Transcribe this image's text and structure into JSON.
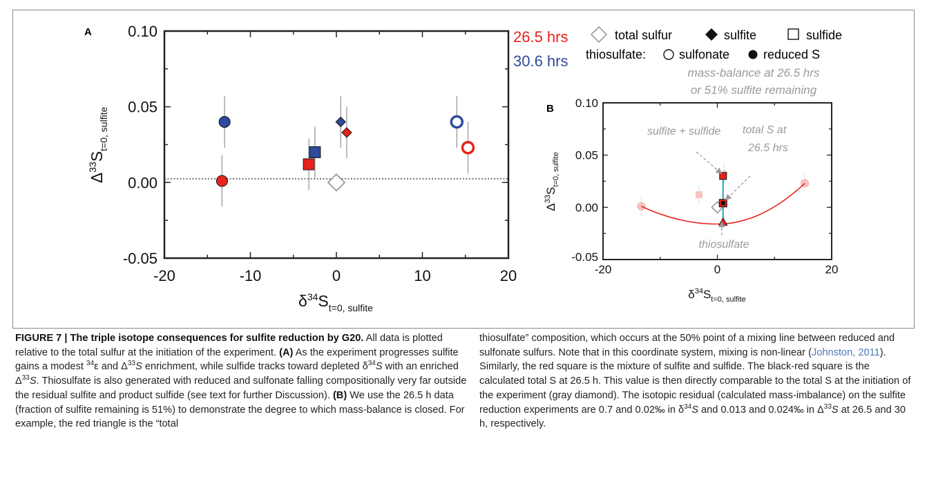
{
  "panel_a": {
    "label": "A",
    "ylabel_main": "Δ",
    "ylabel_sup": "33",
    "ylabel_rest": "S",
    "ylabel_sub": "t=0, sulfite",
    "xlabel_main": "δ",
    "xlabel_sup": "34",
    "xlabel_rest": "S",
    "xlabel_sub": "t=0, sulfite",
    "x_ticks": [
      "-20",
      "-10",
      "0",
      "10",
      "20"
    ],
    "y_ticks": [
      "0.10",
      "0.05",
      "0.00",
      "-0.05"
    ]
  },
  "legend": {
    "time1": "26.5 hrs",
    "time2": "30.6 hrs",
    "total_sulfur": "total sulfur",
    "sulfite": "sulfite",
    "sulfide": "sulfide",
    "thiosulfate_prefix": "thiosulfate:",
    "sulfonate": "sulfonate",
    "reduced": "reduced S",
    "mass_balance_line1": "mass-balance at 26.5 hrs",
    "mass_balance_line2": "or 51% sulfite remaining",
    "colors": {
      "h26": "#e8231c",
      "h30": "#2e4a9c",
      "gray": "#999999",
      "line": "#1ea3c4"
    }
  },
  "panel_b": {
    "label": "B",
    "x_ticks": [
      "-20",
      "0",
      "20"
    ],
    "y_ticks": [
      "0.10",
      "0.05",
      "0.00",
      "-0.05"
    ],
    "annotation_sulfite_sulfide": "sulfite + sulfide",
    "annotation_total_line1": "total S at",
    "annotation_total_line2": "26.5 hrs",
    "annotation_thiosulfate": "thiosulfate"
  },
  "chart_data": [
    {
      "type": "scatter",
      "panel": "A",
      "xlim": [
        -20,
        20
      ],
      "ylim": [
        -0.05,
        0.1
      ],
      "reference_line_y": 0.0,
      "series": [
        {
          "name": "total sulfur",
          "marker": "open-diamond",
          "color": "#999999",
          "points": [
            {
              "x": 0.0,
              "y": 0.0,
              "err": 0.0
            }
          ]
        },
        {
          "name": "sulfite",
          "marker": "filled-diamond",
          "points": [
            {
              "x": 1.2,
              "y": 0.033,
              "err": 0.017,
              "color": "#e8231c"
            },
            {
              "x": 0.5,
              "y": 0.04,
              "err": 0.017,
              "color": "#2e4a9c"
            }
          ]
        },
        {
          "name": "sulfide",
          "marker": "filled-square",
          "points": [
            {
              "x": -3.2,
              "y": 0.012,
              "err": 0.017,
              "color": "#e8231c"
            },
            {
              "x": -2.5,
              "y": 0.02,
              "err": 0.017,
              "color": "#2e4a9c"
            }
          ]
        },
        {
          "name": "sulfonate",
          "marker": "open-circle",
          "points": [
            {
              "x": 15.3,
              "y": 0.023,
              "err": 0.017,
              "color": "#e8231c"
            },
            {
              "x": 14.0,
              "y": 0.04,
              "err": 0.017,
              "color": "#2e4a9c"
            }
          ]
        },
        {
          "name": "reduced S",
          "marker": "filled-circle",
          "points": [
            {
              "x": -13.3,
              "y": 0.001,
              "err": 0.017,
              "color": "#e8231c"
            },
            {
              "x": -13.0,
              "y": 0.04,
              "err": 0.017,
              "color": "#2e4a9c"
            }
          ]
        }
      ]
    },
    {
      "type": "scatter",
      "panel": "B",
      "xlim": [
        -20,
        20
      ],
      "ylim": [
        -0.05,
        0.1
      ],
      "faded_points": [
        {
          "marker": "circle",
          "x": -13.3,
          "y": 0.001
        },
        {
          "marker": "circle",
          "x": 15.3,
          "y": 0.023
        },
        {
          "marker": "square",
          "x": -3.2,
          "y": 0.012
        },
        {
          "marker": "diamond",
          "x": 1.2,
          "y": 0.033
        }
      ],
      "key_points": [
        {
          "name": "total sulfur",
          "marker": "open-diamond",
          "x": 0.0,
          "y": 0.0
        },
        {
          "name": "sulfite + sulfide",
          "marker": "red-square",
          "x": 1.0,
          "y": 0.03
        },
        {
          "name": "total S at 26.5 hrs",
          "marker": "black-red-square",
          "x": 1.0,
          "y": 0.004
        },
        {
          "name": "thiosulfate",
          "marker": "red-triangle",
          "x": 1.0,
          "y": -0.014
        }
      ],
      "mixing_curve": {
        "from": [
          -13.3,
          0.001
        ],
        "vertex": [
          0.0,
          -0.016
        ],
        "to": [
          15.3,
          0.023
        ]
      },
      "connector": {
        "from_y": 0.03,
        "to_y": -0.014,
        "x": 1.0
      }
    }
  ],
  "caption_left": {
    "figure_title": "FIGURE 7 | The triple isotope consequences for sulfite reduction by G20.",
    "s1": "All data is plotted relative to the total sulfur at the initiation of the experiment.",
    "a_label": "(A)",
    "a1": "As the experiment progresses sulfite gains a modest",
    "eps_sup": "34",
    "eps": "ε",
    "a2": "and",
    "d33_a": "Δ",
    "d33_sup": "33",
    "d33_s": "S",
    "a3": "enrichment, while sulfide tracks toward depleted",
    "d34_a": "δ",
    "d34_sup": "34",
    "d34_s": "S",
    "a4": "with an enriched",
    "a5": ". Thiosulfate is also generated with reduced and sulfonate falling compositionally very far outside the residual sulfite and product sulfide (see text for further Discussion).",
    "b_label": "(B)",
    "b1": "We use the 26.5 h data (fraction of sulfite remaining is 51%) to demonstrate the degree to which mass-balance is closed. For example, the red triangle is the “total"
  },
  "caption_right": {
    "r1": "thiosulfate” composition, which occurs at the 50% point of a mixing line between reduced and sulfonate sulfurs. Note that in this coordinate system, mixing is non-linear (",
    "citation": "Johnston, 2011",
    "r2": "). Similarly, the red square is the mixture of sulfite and sulfide. The black-red square is the calculated total S at 26.5 h. This value is then directly comparable to the total S at the initiation of the experiment (gray diamond). The isotopic residual (calculated mass-imbalance) on the sulfite reduction experiments are 0.7 and 0.02‰ in",
    "r3": "and 0.013 and 0.024‰ in",
    "r4": "at 26.5 and 30 h, respectively."
  }
}
